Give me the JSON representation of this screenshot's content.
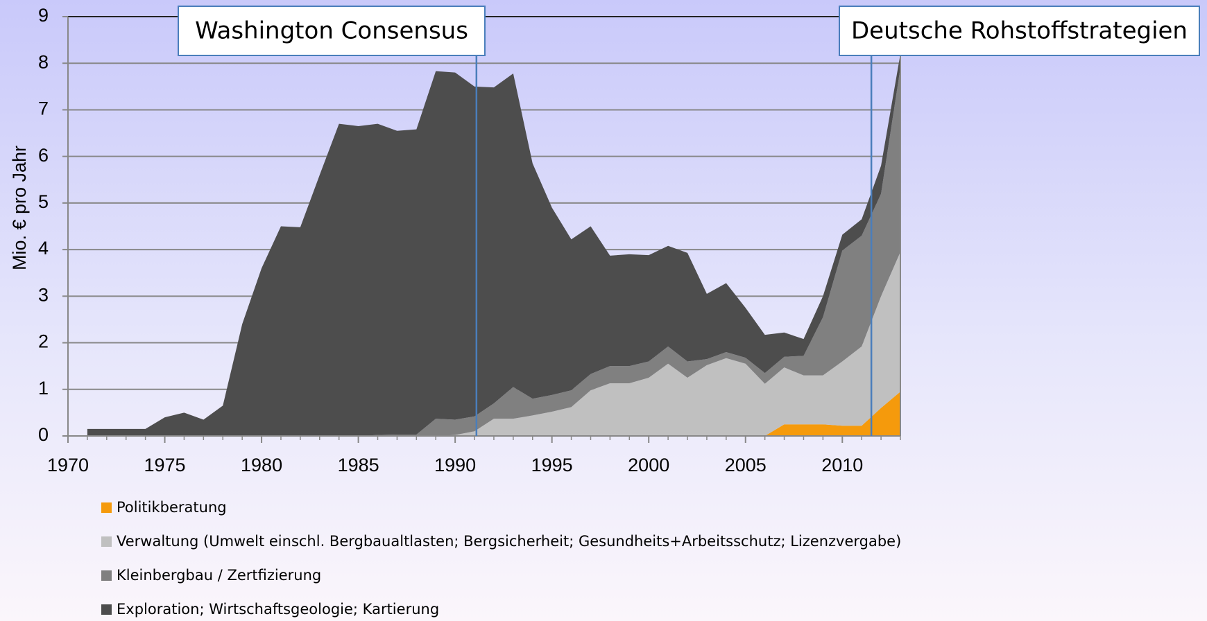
{
  "chart_data": {
    "type": "stacked_area",
    "y_label": "Mio. € pro Jahr",
    "x": [
      1971,
      1972,
      1973,
      1974,
      1975,
      1976,
      1977,
      1978,
      1979,
      1980,
      1981,
      1982,
      1983,
      1984,
      1985,
      1986,
      1987,
      1988,
      1989,
      1990,
      1991,
      1992,
      1993,
      1994,
      1995,
      1996,
      1997,
      1998,
      1999,
      2000,
      2001,
      2002,
      2003,
      2004,
      2005,
      2006,
      2007,
      2008,
      2009,
      2010,
      2011,
      2012,
      2013
    ],
    "xlim": [
      1970,
      2013
    ],
    "xticks": [
      1970,
      1975,
      1980,
      1985,
      1990,
      1995,
      2000,
      2005,
      2010
    ],
    "ylim": [
      0,
      9
    ],
    "yticks": [
      0,
      1,
      2,
      3,
      4,
      5,
      6,
      7,
      8,
      9
    ],
    "grid": true,
    "series": [
      {
        "name": "Politikberatung",
        "color": "#f59a0c",
        "values": [
          0,
          0,
          0,
          0,
          0,
          0,
          0,
          0,
          0,
          0,
          0,
          0,
          0,
          0,
          0,
          0,
          0,
          0,
          0,
          0,
          0,
          0,
          0,
          0,
          0,
          0,
          0,
          0,
          0,
          0,
          0,
          0,
          0,
          0,
          0,
          0,
          0.25,
          0.25,
          0.25,
          0.22,
          0.22,
          0.6,
          0.95
        ]
      },
      {
        "name": "Verwaltung (Umwelt einschl. Bergbaualtlasten; Bergsicherheit;  Gesundheits+Arbeitsschutz; Lizenzvergabe)",
        "color": "#c0c0c0",
        "values": [
          0,
          0,
          0,
          0,
          0,
          0,
          0,
          0,
          0,
          0,
          0,
          0,
          0,
          0,
          0,
          0,
          0,
          0,
          0,
          0.02,
          0.1,
          0.37,
          0.37,
          0.44,
          0.52,
          0.62,
          0.98,
          1.13,
          1.13,
          1.25,
          1.55,
          1.25,
          1.52,
          1.67,
          1.55,
          1.12,
          1.22,
          1.05,
          1.05,
          1.38,
          1.7,
          2.4,
          3.0
        ]
      },
      {
        "name": "Kleinbergbau / Zertfizierung",
        "color": "#808080",
        "values": [
          0,
          0,
          0,
          0,
          0,
          0,
          0,
          0,
          0,
          0,
          0,
          0,
          0,
          0,
          0,
          0.02,
          0.03,
          0.03,
          0.37,
          0.33,
          0.32,
          0.33,
          0.68,
          0.36,
          0.36,
          0.36,
          0.35,
          0.37,
          0.37,
          0.35,
          0.37,
          0.35,
          0.13,
          0.13,
          0.13,
          0.23,
          0.23,
          0.42,
          1.25,
          2.38,
          2.38,
          2.2,
          3.95
        ]
      },
      {
        "name": "Exploration; Wirtschaftsgeologie; Kartierung",
        "color": "#4d4d4d",
        "values": [
          0.15,
          0.15,
          0.15,
          0.15,
          0.4,
          0.5,
          0.35,
          0.65,
          2.4,
          3.6,
          4.5,
          4.48,
          5.6,
          6.7,
          6.65,
          6.68,
          6.52,
          6.55,
          7.46,
          7.45,
          7.08,
          6.78,
          6.73,
          5.05,
          4.02,
          3.24,
          3.17,
          2.37,
          2.4,
          2.28,
          2.16,
          2.33,
          1.4,
          1.48,
          1.07,
          0.82,
          0.52,
          0.36,
          0.45,
          0.34,
          0.35,
          0.6,
          0.3
        ]
      }
    ],
    "annotations": [
      {
        "text": "Washington Consensus",
        "x": 1991.1
      },
      {
        "text": "Deutsche Rohstoffstrategien",
        "x": 2011.5
      }
    ]
  }
}
